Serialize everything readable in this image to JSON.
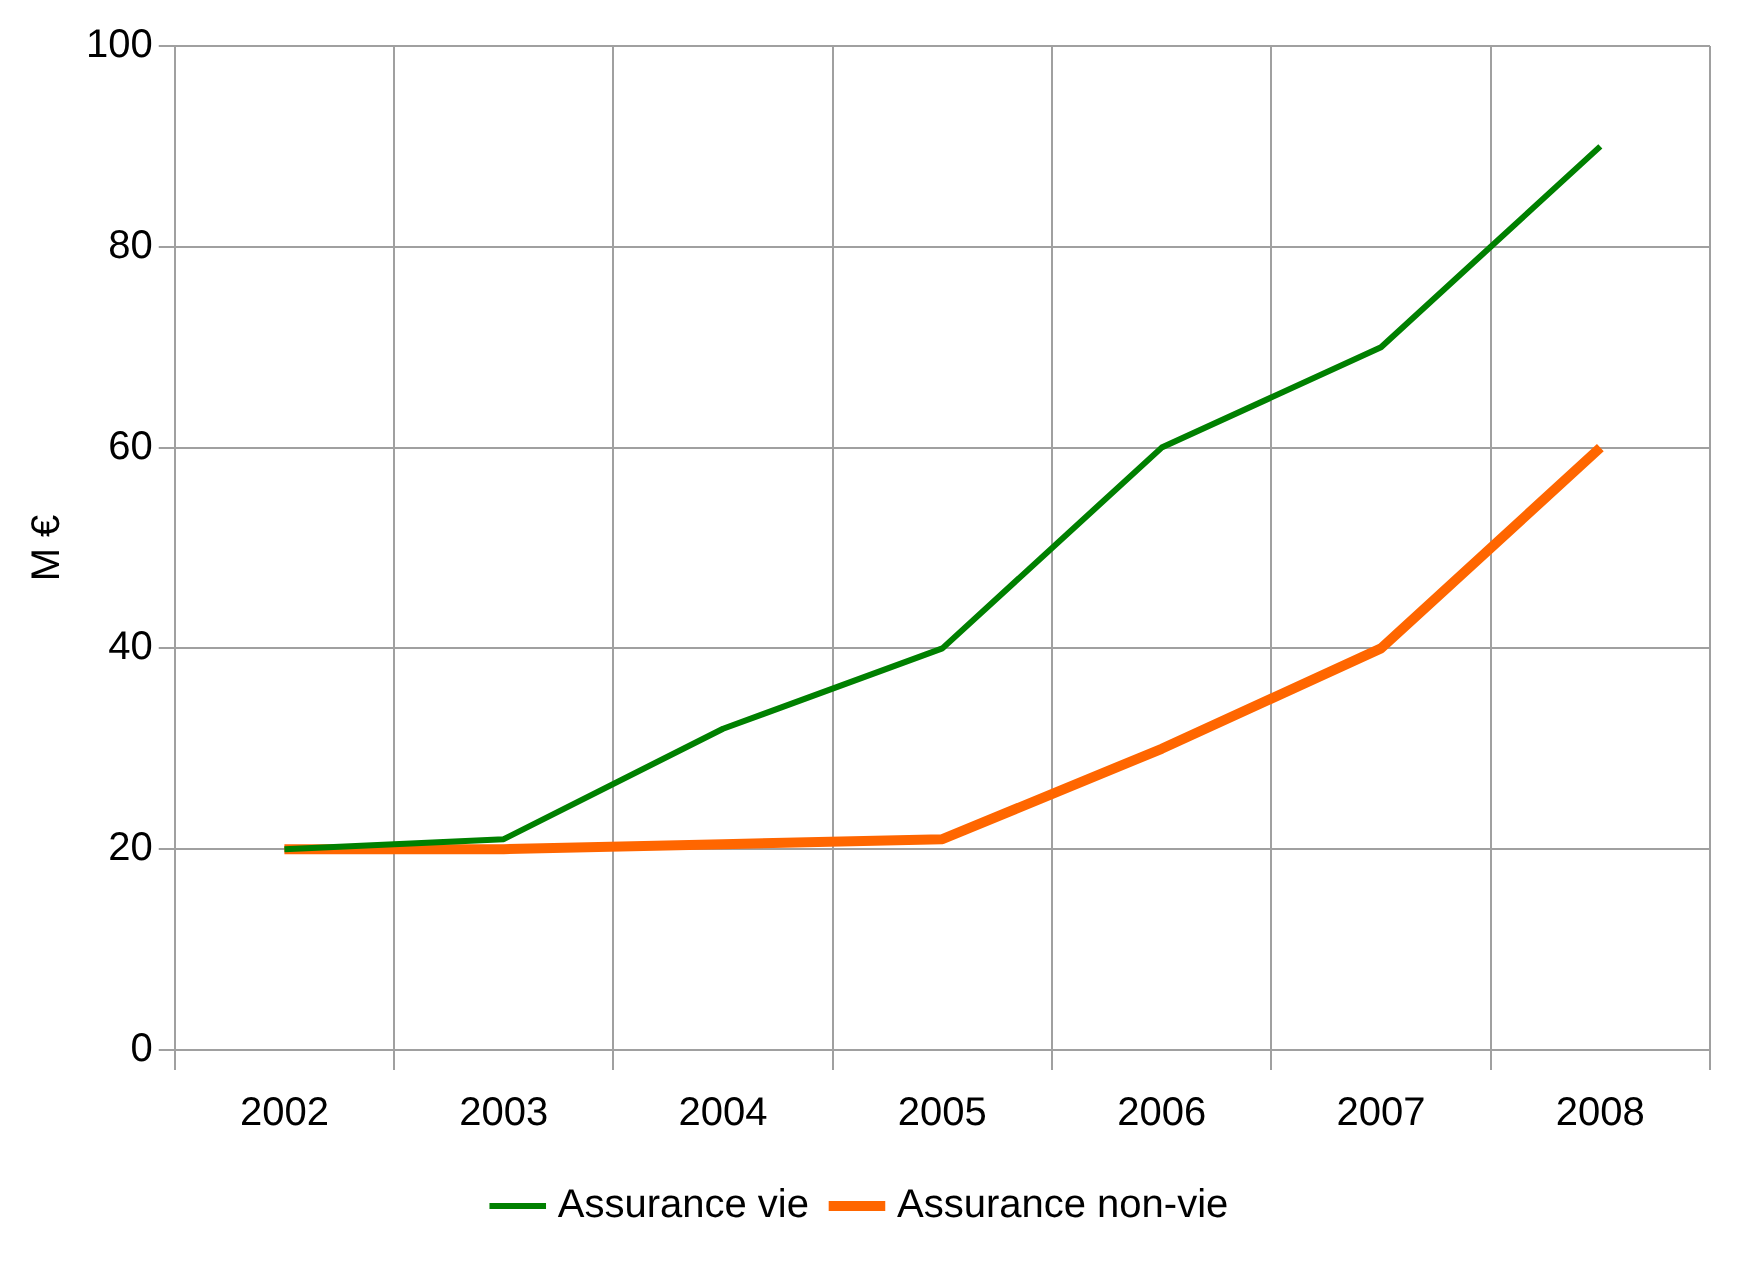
{
  "chart_data": {
    "type": "line",
    "ylabel": "M €",
    "categories": [
      "2002",
      "2003",
      "2004",
      "2005",
      "2006",
      "2007",
      "2008"
    ],
    "series": [
      {
        "name": "Assurance vie",
        "color": "#008000",
        "values": [
          20,
          21,
          32,
          40,
          60,
          70,
          90
        ]
      },
      {
        "name": "Assurance non-vie",
        "color": "#ff6600",
        "values": [
          20,
          20,
          20.5,
          21,
          30,
          40,
          60
        ]
      }
    ],
    "ylim": [
      0,
      100
    ],
    "yticks": [
      0,
      20,
      40,
      60,
      80,
      100
    ],
    "grid": true,
    "legend": "bottom",
    "marker": "none",
    "line_style": "solid"
  }
}
